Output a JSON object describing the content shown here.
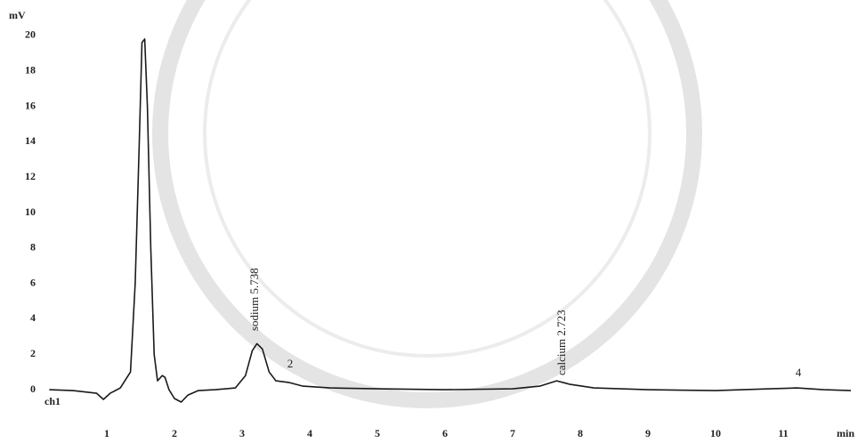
{
  "chart_data": {
    "type": "line",
    "x_label": "min",
    "y_label": "mV",
    "series": [
      {
        "name": "ch1",
        "color": "#1a1a1a",
        "x": [
          0.15,
          0.5,
          0.85,
          0.95,
          1.05,
          1.2,
          1.35,
          1.42,
          1.48,
          1.52,
          1.56,
          1.6,
          1.65,
          1.7,
          1.75,
          1.82,
          1.86,
          1.92,
          2.0,
          2.1,
          2.2,
          2.35,
          2.6,
          2.9,
          3.05,
          3.15,
          3.22,
          3.3,
          3.4,
          3.5,
          3.7,
          3.9,
          4.3,
          5.0,
          6.0,
          7.0,
          7.4,
          7.65,
          7.85,
          8.2,
          9.0,
          10.0,
          10.8,
          11.2,
          11.6,
          12.0
        ],
        "values": [
          0,
          -0.05,
          -0.2,
          -0.55,
          -0.2,
          0.1,
          1,
          6,
          14,
          19.6,
          19.8,
          16,
          8,
          2,
          0.5,
          0.8,
          0.7,
          0,
          -0.5,
          -0.7,
          -0.3,
          -0.05,
          0,
          0.1,
          0.8,
          2.2,
          2.6,
          2.3,
          1.0,
          0.5,
          0.4,
          0.2,
          0.1,
          0.05,
          0,
          0.05,
          0.2,
          0.5,
          0.3,
          0.1,
          0,
          -0.05,
          0.05,
          0.1,
          0,
          -0.05
        ]
      }
    ],
    "annotations": [
      "sodium 5.738",
      "2",
      "calcium 2.723",
      "4"
    ],
    "xlim": [
      0,
      12
    ],
    "ylim": [
      -1,
      21
    ],
    "xticks": [
      1,
      2,
      3,
      4,
      5,
      6,
      7,
      8,
      9,
      10,
      11
    ],
    "yticks": [
      0,
      2,
      4,
      6,
      8,
      10,
      12,
      14,
      16,
      18,
      20
    ],
    "grid": false
  }
}
